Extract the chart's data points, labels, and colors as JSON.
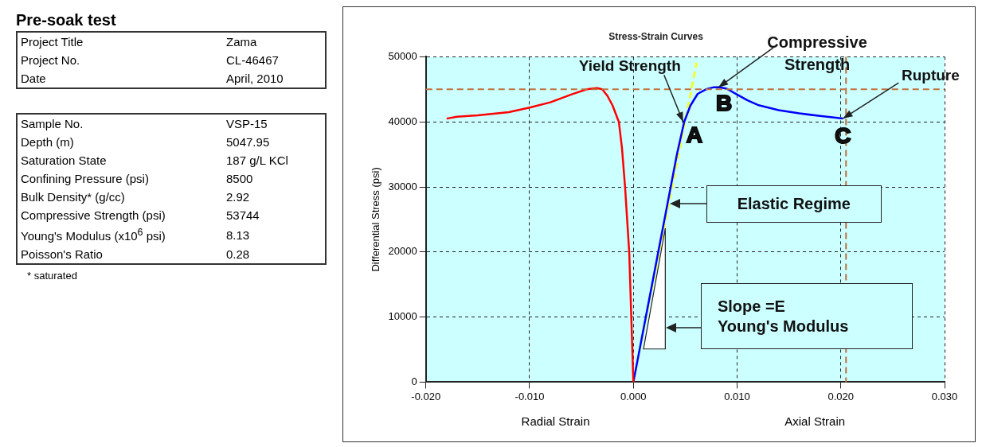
{
  "chart_data": [
    {
      "type": "other",
      "title": "Pre-soak test",
      "annotations": [
        "Project Title",
        "Zama",
        "Project No.",
        "CL-46467",
        "Date",
        "April, 2010"
      ]
    },
    {
      "type": "other",
      "annotations": [
        "Sample No.",
        "VSP-15",
        "Depth (m)",
        "5047.95",
        "Saturation State",
        "187 g/L KCl",
        "Confining Pressure (psi)",
        "8500",
        "Bulk Density* (g/cc)",
        "2.92",
        "Compressive Strength (psi)",
        "53744",
        "Young's Modulus (x10$^{6}$ psi)",
        "8.13",
        "Poisson's Ratio",
        "0.28",
        "* saturated"
      ]
    },
    {
      "type": "line",
      "title": "Stress-Strain Curves",
      "ylabel": "Differential Stress (psi)",
      "xlim": [
        -0.02,
        0.03
      ],
      "xticks": [
        {
          "value": -0.02,
          "label": "-0.020"
        },
        {
          "value": -0.01,
          "label": "-0.010"
        },
        {
          "value": 0,
          "label": "0.000"
        },
        {
          "value": 0.01,
          "label": "0.010"
        },
        {
          "value": 0.02,
          "label": "0.020"
        },
        {
          "value": 0.03,
          "label": "0.030"
        }
      ],
      "ylim": [
        0,
        50000
      ],
      "yticks": [
        0,
        10000,
        20000,
        30000,
        40000,
        50000
      ],
      "grid": true,
      "series": [
        {
          "color": "#ff0000",
          "x": [
            -0.018,
            -0.017,
            -0.015,
            -0.012,
            -0.01,
            -0.008,
            -0.006,
            -0.0045,
            -0.0035,
            -0.003,
            -0.0025,
            -0.002,
            -0.0014,
            -0.0011,
            -0.0008,
            -0.0004,
            -0.0002,
            -0.0001,
            0
          ],
          "values": [
            40500,
            40800,
            41000,
            41500,
            42200,
            43000,
            44200,
            45000,
            45200,
            45000,
            44000,
            42500,
            40000,
            36000,
            30000,
            20000,
            10000,
            5000,
            0
          ]
        },
        {
          "color": "#0000ff",
          "x": [
            0,
            0.0006,
            0.0012,
            0.0018,
            0.0024,
            0.003,
            0.0036,
            0.0042,
            0.0049,
            0.0055,
            0.0062,
            0.007,
            0.0077,
            0.0083,
            0.009,
            0.01,
            0.011,
            0.012,
            0.014,
            0.016,
            0.018,
            0.0202
          ],
          "values": [
            0,
            5000,
            10000,
            15000,
            20000,
            25000,
            30000,
            35000,
            40000,
            42500,
            44300,
            45000,
            45300,
            45300,
            45100,
            44200,
            43300,
            42600,
            41800,
            41300,
            40900,
            40500
          ]
        },
        {
          "type": "line",
          "color": "#ffff00",
          "line_style": "dashed",
          "x": [
            0,
            0.0061
          ],
          "values": [
            0,
            49100
          ]
        }
      ],
      "ref_lines": [
        {
          "axis": "y",
          "value": 45000,
          "color": "#c0703f",
          "line_style": "dashed"
        },
        {
          "axis": "x",
          "value": 0.0205,
          "color": "#c0703f",
          "line_style": "dashed"
        }
      ],
      "annotations": [
        "Radial Strain",
        "Axial Strain",
        "Elastic Regime",
        "Slope =E",
        "Young's Modulus",
        {
          "text": "Yield Strength",
          "x": 0.0048,
          "y": 40000
        },
        {
          "text": "A",
          "x": 0.0048,
          "y": 40000
        },
        {
          "text": "Compressive Strength",
          "x": 0.0082,
          "y": 45300
        },
        {
          "text": "B",
          "x": 0.0082,
          "y": 45300
        },
        {
          "text": "Rupture",
          "x": 0.0202,
          "y": 40500
        },
        {
          "text": "C",
          "x": 0.0202,
          "y": 40500
        }
      ]
    }
  ]
}
